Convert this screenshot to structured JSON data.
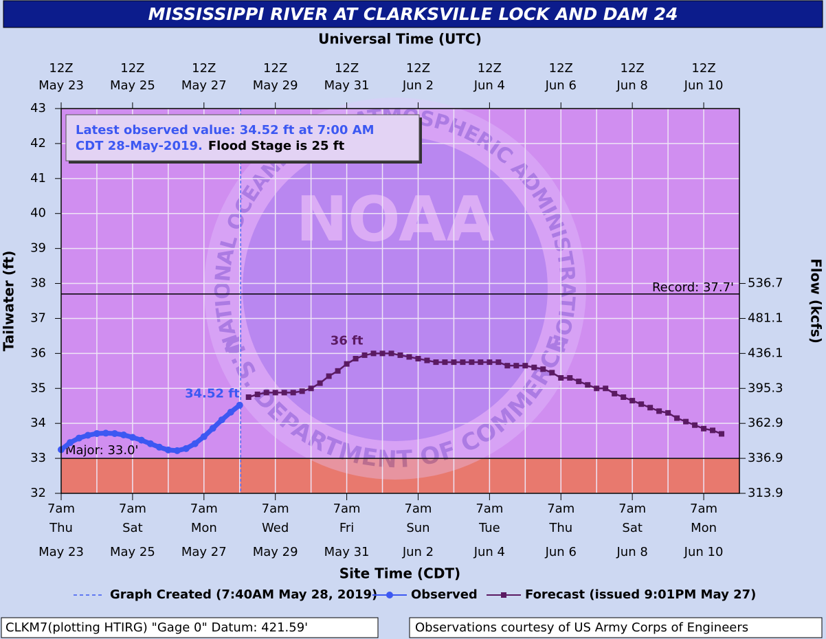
{
  "chart_data": {
    "type": "line",
    "title": "MISSISSIPPI RIVER AT CLARKSVILLE LOCK AND DAM 24",
    "x2_label": "Universal Time (UTC)",
    "x_label": "Site Time (CDT)",
    "y_label": "Tailwater (ft)",
    "y2_label": "Flow (kcfs)",
    "xlim": [
      "2019-05-23T07:00",
      "2019-06-11T07:00"
    ],
    "xticks": [
      {
        "value": "2019-05-23T07:00",
        "label": [
          "7am",
          "Thu",
          "May 23"
        ]
      },
      {
        "value": "2019-05-25T07:00",
        "label": [
          "7am",
          "Sat",
          "May 25"
        ]
      },
      {
        "value": "2019-05-27T07:00",
        "label": [
          "7am",
          "Mon",
          "May 27"
        ]
      },
      {
        "value": "2019-05-29T07:00",
        "label": [
          "7am",
          "Wed",
          "May 29"
        ]
      },
      {
        "value": "2019-05-31T07:00",
        "label": [
          "7am",
          "Fri",
          "May 31"
        ]
      },
      {
        "value": "2019-06-02T07:00",
        "label": [
          "7am",
          "Sun",
          "Jun 2"
        ]
      },
      {
        "value": "2019-06-04T07:00",
        "label": [
          "7am",
          "Tue",
          "Jun 4"
        ]
      },
      {
        "value": "2019-06-06T07:00",
        "label": [
          "7am",
          "Thu",
          "Jun 6"
        ]
      },
      {
        "value": "2019-06-08T07:00",
        "label": [
          "7am",
          "Sat",
          "Jun 8"
        ]
      },
      {
        "value": "2019-06-10T07:00",
        "label": [
          "7am",
          "Mon",
          "Jun 10"
        ]
      }
    ],
    "xminor": [
      "2019-05-24T07:00",
      "2019-05-26T07:00",
      "2019-05-28T07:00",
      "2019-05-30T07:00",
      "2019-06-01T07:00",
      "2019-06-03T07:00",
      "2019-06-05T07:00",
      "2019-06-07T07:00",
      "2019-06-09T07:00"
    ],
    "x2ticks": [
      {
        "value": "2019-05-23T07:00",
        "label": [
          "12Z",
          "May 23"
        ]
      },
      {
        "value": "2019-05-25T07:00",
        "label": [
          "12Z",
          "May 25"
        ]
      },
      {
        "value": "2019-05-27T07:00",
        "label": [
          "12Z",
          "May 27"
        ]
      },
      {
        "value": "2019-05-29T07:00",
        "label": [
          "12Z",
          "May 29"
        ]
      },
      {
        "value": "2019-05-31T07:00",
        "label": [
          "12Z",
          "May 31"
        ]
      },
      {
        "value": "2019-06-02T07:00",
        "label": [
          "12Z",
          "Jun 2"
        ]
      },
      {
        "value": "2019-06-04T07:00",
        "label": [
          "12Z",
          "Jun 4"
        ]
      },
      {
        "value": "2019-06-06T07:00",
        "label": [
          "12Z",
          "Jun 6"
        ]
      },
      {
        "value": "2019-06-08T07:00",
        "label": [
          "12Z",
          "Jun 8"
        ]
      },
      {
        "value": "2019-06-10T07:00",
        "label": [
          "12Z",
          "Jun 10"
        ]
      }
    ],
    "ylim": [
      32,
      43
    ],
    "yticks": [
      32,
      33,
      34,
      35,
      36,
      37,
      38,
      39,
      40,
      41,
      42,
      43
    ],
    "y2_rating": {
      "stage": [
        32,
        33,
        34,
        35,
        36,
        37,
        38
      ],
      "flow": [
        313.9,
        336.9,
        362.9,
        395.3,
        436.1,
        481.1,
        536.7
      ]
    },
    "grid": true,
    "plot_color": "#d08ef0",
    "series": [
      {
        "name": "Observed",
        "color": "#3c58f2",
        "marker": "circle",
        "x": [
          "2019-05-23T07:00",
          "2019-05-23T13:00",
          "2019-05-23T19:00",
          "2019-05-24T01:00",
          "2019-05-24T07:00",
          "2019-05-24T13:00",
          "2019-05-24T19:00",
          "2019-05-25T01:00",
          "2019-05-25T07:00",
          "2019-05-25T13:00",
          "2019-05-25T19:00",
          "2019-05-26T01:00",
          "2019-05-26T07:00",
          "2019-05-26T13:00",
          "2019-05-26T19:00",
          "2019-05-27T01:00",
          "2019-05-27T07:00",
          "2019-05-27T13:00",
          "2019-05-27T19:00",
          "2019-05-28T01:00",
          "2019-05-28T07:00"
        ],
        "values": [
          33.25,
          33.45,
          33.58,
          33.66,
          33.71,
          33.72,
          33.71,
          33.67,
          33.6,
          33.52,
          33.42,
          33.32,
          33.24,
          33.22,
          33.28,
          33.42,
          33.62,
          33.86,
          34.1,
          34.32,
          34.52
        ]
      },
      {
        "name": "Forecast (issued 9:01PM May 27)",
        "color": "#5a1a62",
        "marker": "square",
        "x": [
          "2019-05-28T13:00",
          "2019-05-28T19:00",
          "2019-05-29T01:00",
          "2019-05-29T07:00",
          "2019-05-29T13:00",
          "2019-05-29T19:00",
          "2019-05-30T01:00",
          "2019-05-30T07:00",
          "2019-05-30T13:00",
          "2019-05-30T19:00",
          "2019-05-31T01:00",
          "2019-05-31T07:00",
          "2019-05-31T13:00",
          "2019-05-31T19:00",
          "2019-06-01T01:00",
          "2019-06-01T07:00",
          "2019-06-01T13:00",
          "2019-06-01T19:00",
          "2019-06-02T01:00",
          "2019-06-02T07:00",
          "2019-06-02T13:00",
          "2019-06-02T19:00",
          "2019-06-03T01:00",
          "2019-06-03T07:00",
          "2019-06-03T13:00",
          "2019-06-03T19:00",
          "2019-06-04T01:00",
          "2019-06-04T07:00",
          "2019-06-04T13:00",
          "2019-06-04T19:00",
          "2019-06-05T01:00",
          "2019-06-05T07:00",
          "2019-06-05T13:00",
          "2019-06-05T19:00",
          "2019-06-06T01:00",
          "2019-06-06T07:00",
          "2019-06-06T13:00",
          "2019-06-06T19:00",
          "2019-06-07T01:00",
          "2019-06-07T07:00",
          "2019-06-07T13:00",
          "2019-06-07T19:00",
          "2019-06-08T01:00",
          "2019-06-08T07:00",
          "2019-06-08T13:00",
          "2019-06-08T19:00",
          "2019-06-09T01:00",
          "2019-06-09T07:00",
          "2019-06-09T13:00",
          "2019-06-09T19:00",
          "2019-06-10T01:00",
          "2019-06-10T07:00",
          "2019-06-10T13:00",
          "2019-06-10T19:00"
        ],
        "values": [
          34.75,
          34.83,
          34.88,
          34.88,
          34.88,
          34.88,
          34.92,
          35.0,
          35.15,
          35.35,
          35.5,
          35.7,
          35.85,
          35.95,
          36.0,
          36.0,
          36.0,
          35.95,
          35.9,
          35.85,
          35.8,
          35.75,
          35.75,
          35.75,
          35.75,
          35.75,
          35.75,
          35.75,
          35.75,
          35.65,
          35.65,
          35.65,
          35.6,
          35.55,
          35.45,
          35.3,
          35.3,
          35.2,
          35.1,
          35.0,
          35.0,
          34.85,
          34.75,
          34.65,
          34.55,
          34.45,
          34.35,
          34.3,
          34.15,
          34.05,
          33.95,
          33.85,
          33.8,
          33.7
        ]
      }
    ],
    "created": {
      "name": "Graph Created (7:40AM May 28, 2019)",
      "x": "2019-05-28T07:40",
      "color": "#3c58f2"
    },
    "thresholds": [
      {
        "label": "Major: 33.0'",
        "value": 33,
        "fill_below": "#e8796e"
      },
      {
        "label": "Record: 37.7'",
        "value": 37.7
      }
    ],
    "annotations": [
      {
        "text": "36 ft",
        "x": "2019-05-31T07:00",
        "y": 36,
        "color": "#5a1a62"
      },
      {
        "text": "34.52 ft",
        "x": "2019-05-28T07:00",
        "y": 34.52,
        "color": "#3c58f2"
      }
    ],
    "info_box": {
      "lines": [
        "Latest observed value: 34.52 ft at 7:00 AM",
        "CDT 28-May-2019."
      ],
      "note": "Flood Stage is 25 ft"
    }
  },
  "watermark": {
    "logo": "NOAA",
    "top": "NATIONAL OCEANIC AND ATMOSPHERIC ADMINISTRATION",
    "bottom": "U.S. DEPARTMENT OF COMMERCE"
  },
  "footer": {
    "left": "CLKM7(plotting HTIRG) \"Gage 0\" Datum: 421.59'",
    "right": "Observations courtesy of US Army Corps of Engineers"
  }
}
